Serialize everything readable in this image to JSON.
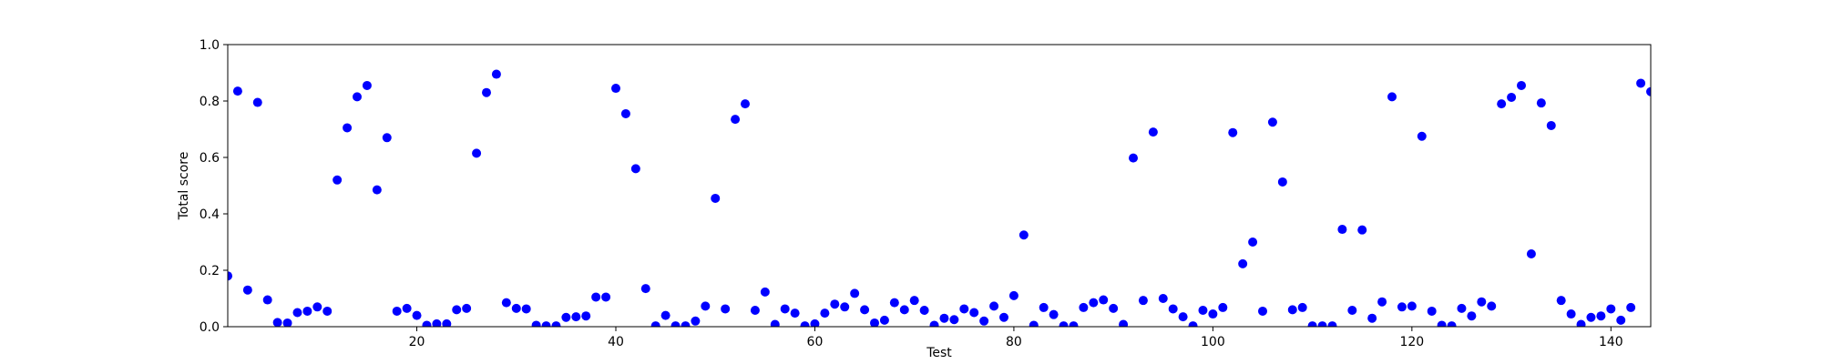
{
  "chart_data": {
    "type": "scatter",
    "title": "",
    "xlabel": "Test",
    "ylabel": "Total score",
    "xlim": [
      1,
      144
    ],
    "ylim": [
      0.0,
      1.0
    ],
    "xticks": [
      20,
      40,
      60,
      80,
      100,
      120,
      140
    ],
    "xtick_labels": [
      "20",
      "40",
      "60",
      "80",
      "100",
      "120",
      "140"
    ],
    "yticks": [
      0.0,
      0.2,
      0.4,
      0.6,
      0.8,
      1.0
    ],
    "ytick_labels": [
      "0.0",
      "0.2",
      "0.4",
      "0.6",
      "0.8",
      "1.0"
    ],
    "grid": false,
    "legend": "none",
    "marker_color": "#0000ff",
    "x": [
      1,
      2,
      3,
      4,
      5,
      6,
      7,
      8,
      9,
      10,
      11,
      12,
      13,
      14,
      15,
      16,
      17,
      18,
      19,
      20,
      21,
      22,
      23,
      24,
      25,
      26,
      27,
      28,
      29,
      30,
      31,
      32,
      33,
      34,
      35,
      36,
      37,
      38,
      39,
      40,
      41,
      42,
      43,
      44,
      45,
      46,
      47,
      48,
      49,
      50,
      51,
      52,
      53,
      54,
      55,
      56,
      57,
      58,
      59,
      60,
      61,
      62,
      63,
      64,
      65,
      66,
      67,
      68,
      69,
      70,
      71,
      72,
      73,
      74,
      75,
      76,
      77,
      78,
      79,
      80,
      81,
      82,
      83,
      84,
      85,
      86,
      87,
      88,
      89,
      90,
      91,
      92,
      93,
      94,
      95,
      96,
      97,
      98,
      99,
      100,
      101,
      102,
      103,
      104,
      105,
      106,
      107,
      108,
      109,
      110,
      111,
      112,
      113,
      114,
      115,
      116,
      117,
      118,
      119,
      120,
      121,
      122,
      123,
      124,
      125,
      126,
      127,
      128,
      129,
      130,
      131,
      132,
      133,
      134,
      135,
      136,
      137,
      138,
      139,
      140,
      141,
      142,
      143,
      144
    ],
    "y": [
      0.18,
      0.835,
      0.13,
      0.795,
      0.095,
      0.015,
      0.013,
      0.05,
      0.055,
      0.07,
      0.055,
      0.52,
      0.705,
      0.815,
      0.855,
      0.485,
      0.67,
      0.055,
      0.065,
      0.04,
      0.005,
      0.01,
      0.01,
      0.06,
      0.065,
      0.615,
      0.83,
      0.895,
      0.085,
      0.065,
      0.063,
      0.005,
      0.003,
      0.003,
      0.033,
      0.035,
      0.038,
      0.105,
      0.105,
      0.845,
      0.755,
      0.56,
      0.135,
      0.003,
      0.04,
      0.003,
      0.003,
      0.02,
      0.073,
      0.455,
      0.063,
      0.735,
      0.79,
      0.058,
      0.123,
      0.008,
      0.063,
      0.048,
      0.003,
      0.01,
      0.048,
      0.08,
      0.07,
      0.118,
      0.06,
      0.013,
      0.023,
      0.085,
      0.06,
      0.093,
      0.058,
      0.005,
      0.03,
      0.025,
      0.063,
      0.05,
      0.02,
      0.073,
      0.033,
      0.11,
      0.325,
      0.005,
      0.068,
      0.043,
      0.003,
      0.003,
      0.068,
      0.085,
      0.095,
      0.065,
      0.008,
      0.598,
      0.093,
      0.69,
      0.1,
      0.063,
      0.035,
      0.003,
      0.058,
      0.045,
      0.068,
      0.688,
      0.223,
      0.3,
      0.055,
      0.725,
      0.513,
      0.06,
      0.068,
      0.003,
      0.003,
      0.003,
      0.345,
      0.058,
      0.343,
      0.03,
      0.088,
      0.815,
      0.07,
      0.073,
      0.675,
      0.055,
      0.005,
      0.003,
      0.065,
      0.038,
      0.088,
      0.073,
      0.79,
      0.813,
      0.855,
      0.258,
      0.793,
      0.713,
      0.093,
      0.045,
      0.008,
      0.033,
      0.038,
      0.063,
      0.023,
      0.068,
      0.863,
      0.833
    ]
  }
}
